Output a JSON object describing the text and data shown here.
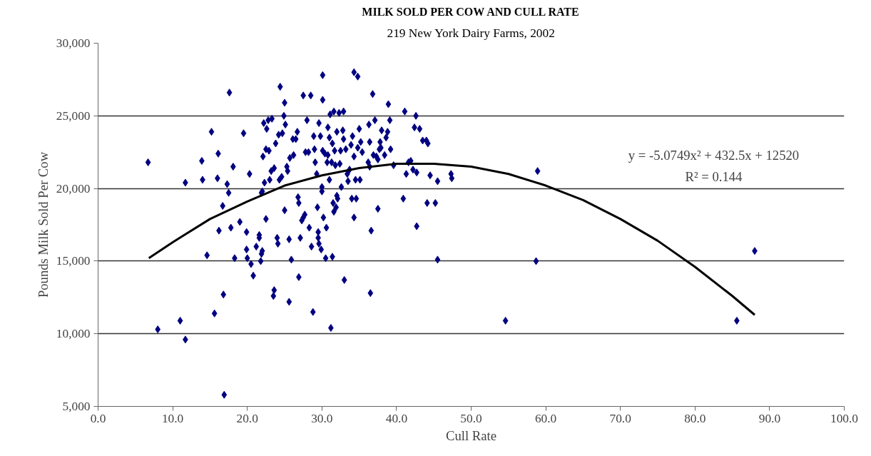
{
  "chart_data": {
    "type": "scatter",
    "title": "MILK SOLD PER COW AND CULL RATE",
    "subtitle": "219 New York Dairy Farms, 2002",
    "xlabel": "Cull Rate",
    "ylabel": "Pounds Milk Sold Per Cow",
    "annotations": [
      "y = -5.0749x² + 432.5x + 12520",
      "R² = 0.144"
    ],
    "xlim": [
      0,
      100
    ],
    "ylim": [
      5000,
      30000
    ],
    "xticks": [
      {
        "value": 0,
        "label": "0.0"
      },
      {
        "value": 10,
        "label": "10.0"
      },
      {
        "value": 20,
        "label": "20.0"
      },
      {
        "value": 30,
        "label": "30.0"
      },
      {
        "value": 40,
        "label": "40.0"
      },
      {
        "value": 50,
        "label": "50.0"
      },
      {
        "value": 60,
        "label": "60.0"
      },
      {
        "value": 70,
        "label": "70.0"
      },
      {
        "value": 80,
        "label": "80.0"
      },
      {
        "value": 90,
        "label": "90.0"
      },
      {
        "value": 100,
        "label": "100.0"
      }
    ],
    "yticks": [
      {
        "value": 5000,
        "label": "5,000"
      },
      {
        "value": 10000,
        "label": "10,000"
      },
      {
        "value": 15000,
        "label": "15,000"
      },
      {
        "value": 20000,
        "label": "20,000"
      },
      {
        "value": 25000,
        "label": "25,000"
      },
      {
        "value": 30000,
        "label": "30,000"
      }
    ],
    "grid": "y",
    "series": [
      {
        "marker": "diamond",
        "color": "#000080",
        "x": [
          6.7,
          8,
          11,
          11.7,
          11.7,
          13.9,
          14,
          14.6,
          15.2,
          15.6,
          16,
          16.1,
          16.2,
          16.7,
          16.8,
          16.9,
          17.3,
          17.5,
          17.6,
          17.8,
          18.1,
          18.3,
          19,
          19.5,
          19.9,
          19.9,
          20,
          20.3,
          20.5,
          20.8,
          21.2,
          21.6,
          21.6,
          21.8,
          21.9,
          21.9,
          22,
          22,
          22.1,
          22.2,
          22.3,
          22.5,
          22.5,
          22.6,
          22.8,
          22.9,
          23,
          23.2,
          23.3,
          23.5,
          23.6,
          23.6,
          23.8,
          24,
          24.1,
          24.2,
          24.3,
          24.4,
          24.6,
          24.7,
          24.9,
          25,
          25,
          25.1,
          25.3,
          25.4,
          25.6,
          25.6,
          25.7,
          25.9,
          26.1,
          26.2,
          26.5,
          26.7,
          26.8,
          26.9,
          26.9,
          27.1,
          27.3,
          27.5,
          27.5,
          27.7,
          27.8,
          28,
          28.2,
          28.3,
          28.5,
          28.6,
          28.8,
          28.9,
          29,
          29.1,
          29.3,
          29.4,
          29.5,
          29.5,
          29.6,
          29.6,
          29.8,
          29.9,
          30,
          30,
          30.1,
          30.1,
          30.1,
          30.2,
          30.4,
          30.5,
          30.6,
          30.7,
          30.8,
          30.8,
          31,
          31,
          31.1,
          31.2,
          31.3,
          31.4,
          31.4,
          31.5,
          31.6,
          31.6,
          31.7,
          31.8,
          31.9,
          32,
          32,
          32.1,
          32.3,
          32.4,
          32.5,
          32.6,
          32.8,
          32.9,
          32.9,
          33,
          33.2,
          33.4,
          33.5,
          33.7,
          33.9,
          34,
          34.1,
          34.3,
          34.3,
          34.3,
          34.5,
          34.6,
          34.8,
          34.8,
          35,
          35.1,
          35.2,
          35.4,
          36.2,
          36.3,
          36.4,
          36.4,
          36.5,
          36.6,
          36.8,
          36.9,
          37.1,
          37.3,
          37.5,
          37.5,
          37.7,
          37.8,
          37.9,
          38,
          38.4,
          38.6,
          38.8,
          38.9,
          39.1,
          39.2,
          39.6,
          40.9,
          41.1,
          41.3,
          41.6,
          41.9,
          42.2,
          42.4,
          42.6,
          42.7,
          42.7,
          43.1,
          43.5,
          44,
          44.1,
          44.2,
          44.5,
          45.2,
          45.5,
          45.5,
          47.3,
          47.4,
          54.6,
          58.7,
          58.9,
          85.6,
          88
        ],
        "values": [
          21800,
          10300,
          10900,
          9600,
          20400,
          21900,
          20600,
          15400,
          23900,
          11400,
          20700,
          22400,
          17100,
          18800,
          12700,
          5800,
          20300,
          19700,
          26600,
          17300,
          21500,
          15200,
          17700,
          23800,
          17000,
          15800,
          15200,
          21000,
          14800,
          14000,
          16000,
          16800,
          16600,
          15000,
          15500,
          19700,
          15700,
          19800,
          22200,
          24500,
          20400,
          22700,
          17900,
          24100,
          24700,
          22600,
          20600,
          21200,
          24800,
          12600,
          13000,
          21400,
          23100,
          16600,
          16200,
          23700,
          20600,
          27000,
          20800,
          23800,
          25000,
          25900,
          18500,
          24400,
          21500,
          21200,
          12200,
          16500,
          22100,
          15100,
          23400,
          22300,
          23400,
          23900,
          19400,
          19000,
          13900,
          16600,
          17800,
          26400,
          18000,
          18200,
          22500,
          24700,
          22500,
          17300,
          26400,
          16000,
          11500,
          23600,
          22700,
          21800,
          21000,
          18700,
          17000,
          16600,
          16200,
          24500,
          23600,
          15800,
          19800,
          20100,
          26100,
          27800,
          22600,
          18000,
          22400,
          15200,
          17300,
          21800,
          24200,
          22300,
          20600,
          23500,
          25100,
          10400,
          21800,
          15300,
          23100,
          19000,
          18400,
          25300,
          22600,
          21600,
          18700,
          19500,
          23900,
          19300,
          25200,
          21700,
          22600,
          20100,
          24000,
          23400,
          25300,
          13700,
          22700,
          21000,
          20500,
          21300,
          23000,
          19300,
          23600,
          22200,
          18000,
          28000,
          20600,
          19300,
          27700,
          22800,
          24100,
          20600,
          23200,
          22500,
          21800,
          24400,
          23200,
          21500,
          12800,
          17100,
          26500,
          22300,
          24700,
          22200,
          22000,
          18600,
          22700,
          23200,
          22800,
          24000,
          22300,
          23500,
          23900,
          25800,
          24700,
          22700,
          21600,
          19300,
          25300,
          21000,
          21800,
          21900,
          21300,
          24200,
          25000,
          17400,
          21100,
          24100,
          23300,
          23300,
          19000,
          23100,
          20900,
          19000,
          20500,
          15100,
          21000,
          20700,
          10900,
          15000,
          21200,
          10900,
          15700
        ]
      },
      {
        "type": "line",
        "color": "#000000",
        "x": [
          6.8,
          10,
          15,
          20,
          25,
          30,
          35,
          40,
          42.6,
          45,
          50,
          55,
          60,
          65,
          70,
          75,
          80,
          85,
          88
        ],
        "values": [
          15200,
          16300,
          17900,
          19100,
          20200,
          20900,
          21400,
          21700,
          21700,
          21700,
          21500,
          21000,
          20200,
          19200,
          17900,
          16400,
          14600,
          12600,
          11300
        ]
      }
    ]
  }
}
